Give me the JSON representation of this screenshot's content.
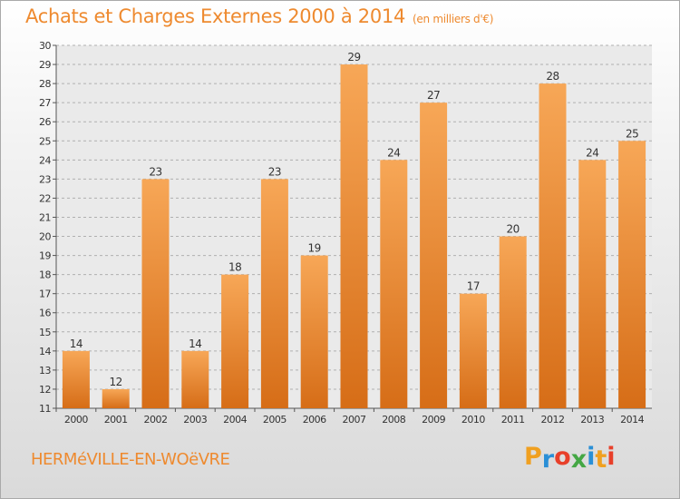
{
  "header": {
    "title": "Achats et Charges Externes 2000 à 2014",
    "subtitle": "(en milliers d'€)"
  },
  "footer": {
    "commune": "HERMéVILLE-EN-WOëVRE",
    "brand": "Proxiti",
    "brand_colors": [
      "#f0a020",
      "#2a8fd6",
      "#e8402a",
      "#44a744",
      "#2a8fd6",
      "#f0a020",
      "#e8402a"
    ]
  },
  "colors": {
    "bar_light": "#f7a757",
    "bar_dark": "#d66d17",
    "grid": "#b0b0b0",
    "axis_text": "#333333",
    "plot_bg": "#eaeaea"
  },
  "chart_data": {
    "type": "bar",
    "title": "Achats et Charges Externes 2000 à 2014",
    "subtitle": "(en milliers d'€)",
    "xlabel": "",
    "ylabel": "",
    "categories": [
      "2000",
      "2001",
      "2002",
      "2003",
      "2004",
      "2005",
      "2006",
      "2007",
      "2008",
      "2009",
      "2010",
      "2011",
      "2012",
      "2013",
      "2014"
    ],
    "values": [
      14,
      12,
      23,
      14,
      18,
      23,
      19,
      29,
      24,
      27,
      17,
      20,
      28,
      24,
      25
    ],
    "ylim": [
      11,
      30
    ],
    "yticks": [
      11,
      12,
      13,
      14,
      15,
      16,
      17,
      18,
      19,
      20,
      21,
      22,
      23,
      24,
      25,
      26,
      27,
      28,
      29,
      30
    ],
    "grid": true,
    "data_labels": true
  }
}
